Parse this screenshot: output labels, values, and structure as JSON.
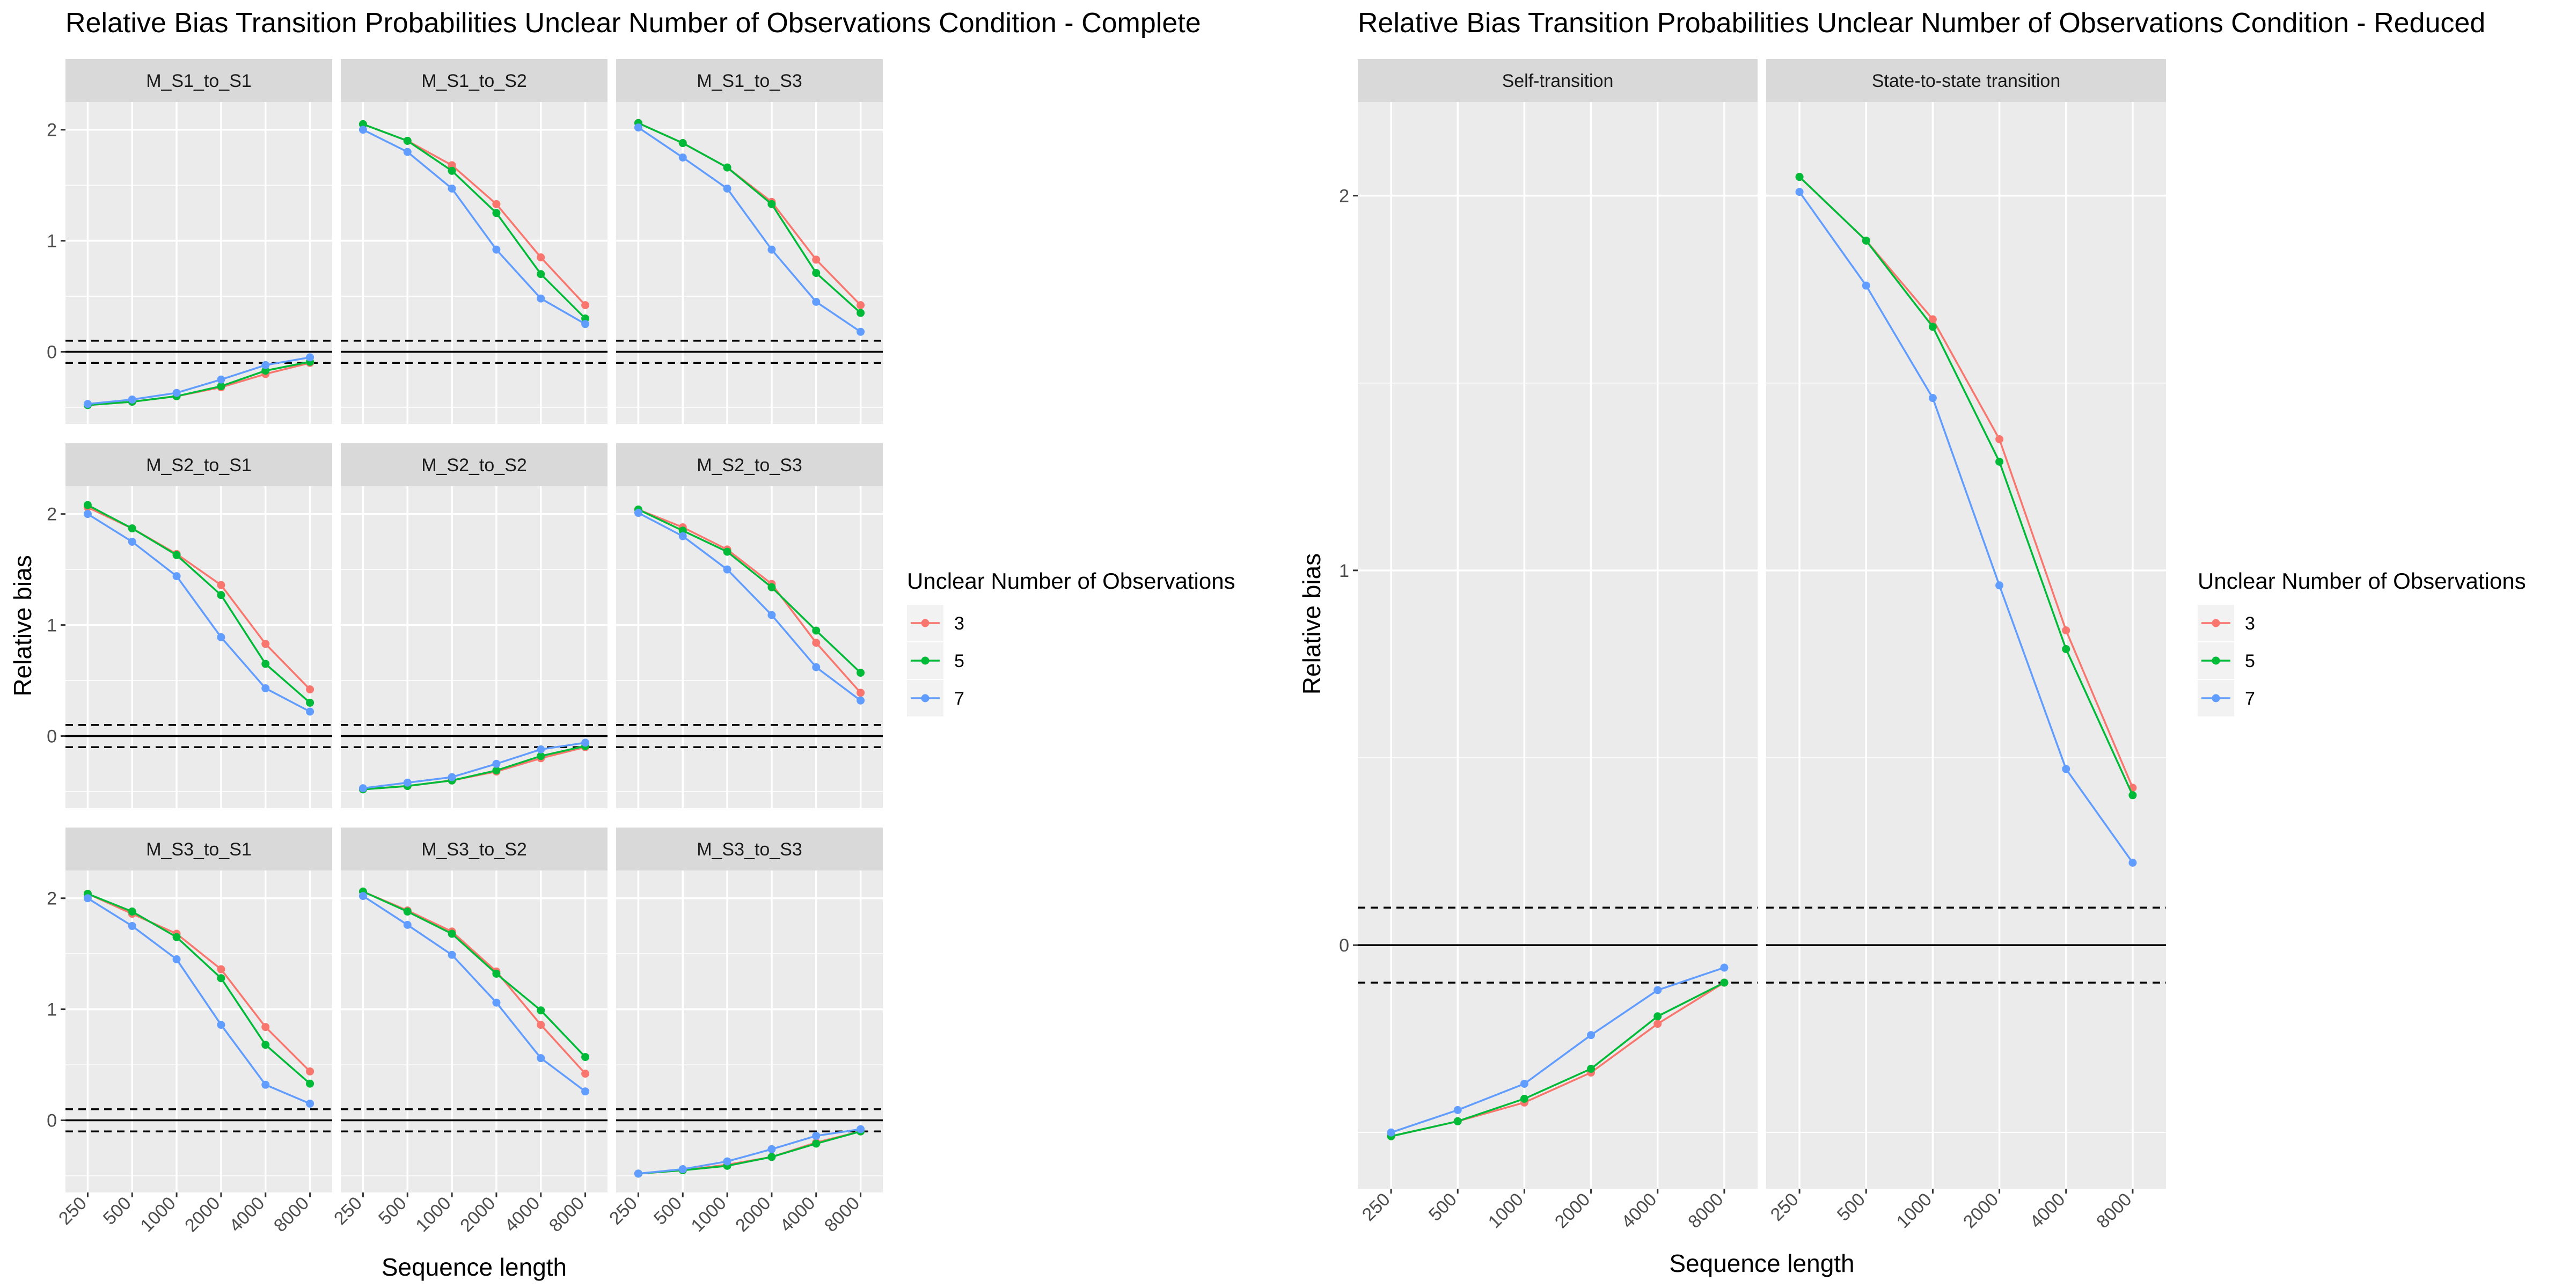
{
  "chart_data": [
    {
      "type": "line",
      "title": "Relative Bias Transition Probabilities Unclear Number of Observations Condition - Complete",
      "xlabel": "Sequence length",
      "ylabel": "Relative bias",
      "categories": [
        "250",
        "500",
        "1000",
        "2000",
        "4000",
        "8000"
      ],
      "ylim": [
        -0.65,
        2.25
      ],
      "yticks": [
        "0",
        "1",
        "2"
      ],
      "legend": {
        "title": "Unclear Number of Observations",
        "position": "right",
        "entries": [
          "3",
          "5",
          "7"
        ]
      },
      "series_colors": {
        "3": "#F8766D",
        "5": "#00BA38",
        "7": "#619CFF"
      },
      "panels": [
        {
          "label": "M_S1_to_S1",
          "series": [
            {
              "name": "3",
              "values": [
                -0.48,
                -0.45,
                -0.4,
                -0.32,
                -0.2,
                -0.1
              ]
            },
            {
              "name": "5",
              "values": [
                -0.48,
                -0.45,
                -0.4,
                -0.31,
                -0.17,
                -0.09
              ]
            },
            {
              "name": "7",
              "values": [
                -0.47,
                -0.43,
                -0.37,
                -0.25,
                -0.12,
                -0.05
              ]
            }
          ]
        },
        {
          "label": "M_S1_to_S2",
          "series": [
            {
              "name": "3",
              "values": [
                2.05,
                1.9,
                1.68,
                1.33,
                0.85,
                0.42
              ]
            },
            {
              "name": "5",
              "values": [
                2.05,
                1.9,
                1.63,
                1.25,
                0.7,
                0.3
              ]
            },
            {
              "name": "7",
              "values": [
                2.0,
                1.8,
                1.47,
                0.92,
                0.48,
                0.25
              ]
            }
          ]
        },
        {
          "label": "M_S1_to_S3",
          "series": [
            {
              "name": "3",
              "values": [
                2.06,
                1.88,
                1.66,
                1.35,
                0.83,
                0.42
              ]
            },
            {
              "name": "5",
              "values": [
                2.06,
                1.88,
                1.66,
                1.33,
                0.71,
                0.35
              ]
            },
            {
              "name": "7",
              "values": [
                2.02,
                1.75,
                1.47,
                0.92,
                0.45,
                0.18
              ]
            }
          ]
        },
        {
          "label": "M_S2_to_S1",
          "series": [
            {
              "name": "3",
              "values": [
                2.06,
                1.87,
                1.64,
                1.36,
                0.83,
                0.42
              ]
            },
            {
              "name": "5",
              "values": [
                2.08,
                1.87,
                1.63,
                1.27,
                0.65,
                0.3
              ]
            },
            {
              "name": "7",
              "values": [
                2.0,
                1.75,
                1.44,
                0.89,
                0.43,
                0.22
              ]
            }
          ]
        },
        {
          "label": "M_S2_to_S2",
          "series": [
            {
              "name": "3",
              "values": [
                -0.48,
                -0.45,
                -0.4,
                -0.32,
                -0.2,
                -0.1
              ]
            },
            {
              "name": "5",
              "values": [
                -0.48,
                -0.45,
                -0.4,
                -0.31,
                -0.18,
                -0.09
              ]
            },
            {
              "name": "7",
              "values": [
                -0.47,
                -0.42,
                -0.37,
                -0.25,
                -0.12,
                -0.06
              ]
            }
          ]
        },
        {
          "label": "M_S2_to_S3",
          "series": [
            {
              "name": "3",
              "values": [
                2.04,
                1.88,
                1.68,
                1.37,
                0.84,
                0.39
              ]
            },
            {
              "name": "5",
              "values": [
                2.04,
                1.85,
                1.66,
                1.34,
                0.95,
                0.57
              ]
            },
            {
              "name": "7",
              "values": [
                2.01,
                1.8,
                1.5,
                1.09,
                0.62,
                0.32
              ]
            }
          ]
        },
        {
          "label": "M_S3_to_S1",
          "series": [
            {
              "name": "3",
              "values": [
                2.04,
                1.86,
                1.68,
                1.36,
                0.84,
                0.44
              ]
            },
            {
              "name": "5",
              "values": [
                2.04,
                1.88,
                1.65,
                1.28,
                0.68,
                0.33
              ]
            },
            {
              "name": "7",
              "values": [
                2.0,
                1.75,
                1.45,
                0.86,
                0.32,
                0.15
              ]
            }
          ]
        },
        {
          "label": "M_S3_to_S2",
          "series": [
            {
              "name": "3",
              "values": [
                2.06,
                1.89,
                1.7,
                1.34,
                0.86,
                0.42
              ]
            },
            {
              "name": "5",
              "values": [
                2.06,
                1.88,
                1.68,
                1.32,
                0.99,
                0.57
              ]
            },
            {
              "name": "7",
              "values": [
                2.02,
                1.76,
                1.49,
                1.06,
                0.56,
                0.26
              ]
            }
          ]
        },
        {
          "label": "M_S3_to_S3",
          "series": [
            {
              "name": "3",
              "values": [
                -0.48,
                -0.45,
                -0.4,
                -0.33,
                -0.2,
                -0.1
              ]
            },
            {
              "name": "5",
              "values": [
                -0.48,
                -0.45,
                -0.41,
                -0.33,
                -0.21,
                -0.1
              ]
            },
            {
              "name": "7",
              "values": [
                -0.48,
                -0.44,
                -0.37,
                -0.26,
                -0.14,
                -0.08
              ]
            }
          ]
        }
      ]
    },
    {
      "type": "line",
      "title": "Relative Bias Transition Probabilities Unclear Number of Observations Condition - Reduced",
      "xlabel": "Sequence length",
      "ylabel": "Relative bias",
      "categories": [
        "250",
        "500",
        "1000",
        "2000",
        "4000",
        "8000"
      ],
      "ylim": [
        -0.65,
        2.25
      ],
      "yticks": [
        "0",
        "1",
        "2"
      ],
      "legend": {
        "title": "Unclear Number of Observations",
        "position": "right",
        "entries": [
          "3",
          "5",
          "7"
        ]
      },
      "series_colors": {
        "3": "#F8766D",
        "5": "#00BA38",
        "7": "#619CFF"
      },
      "panels": [
        {
          "label": "Self-transition",
          "series": [
            {
              "name": "3",
              "values": [
                -0.51,
                -0.47,
                -0.42,
                -0.34,
                -0.21,
                -0.1
              ]
            },
            {
              "name": "5",
              "values": [
                -0.51,
                -0.47,
                -0.41,
                -0.33,
                -0.19,
                -0.1
              ]
            },
            {
              "name": "7",
              "values": [
                -0.5,
                -0.44,
                -0.37,
                -0.24,
                -0.12,
                -0.06
              ]
            }
          ]
        },
        {
          "label": "State-to-state transition",
          "series": [
            {
              "name": "3",
              "values": [
                2.05,
                1.88,
                1.67,
                1.35,
                0.84,
                0.42
              ]
            },
            {
              "name": "5",
              "values": [
                2.05,
                1.88,
                1.65,
                1.29,
                0.79,
                0.4
              ]
            },
            {
              "name": "7",
              "values": [
                2.01,
                1.76,
                1.46,
                0.96,
                0.47,
                0.22
              ]
            }
          ]
        }
      ]
    }
  ]
}
